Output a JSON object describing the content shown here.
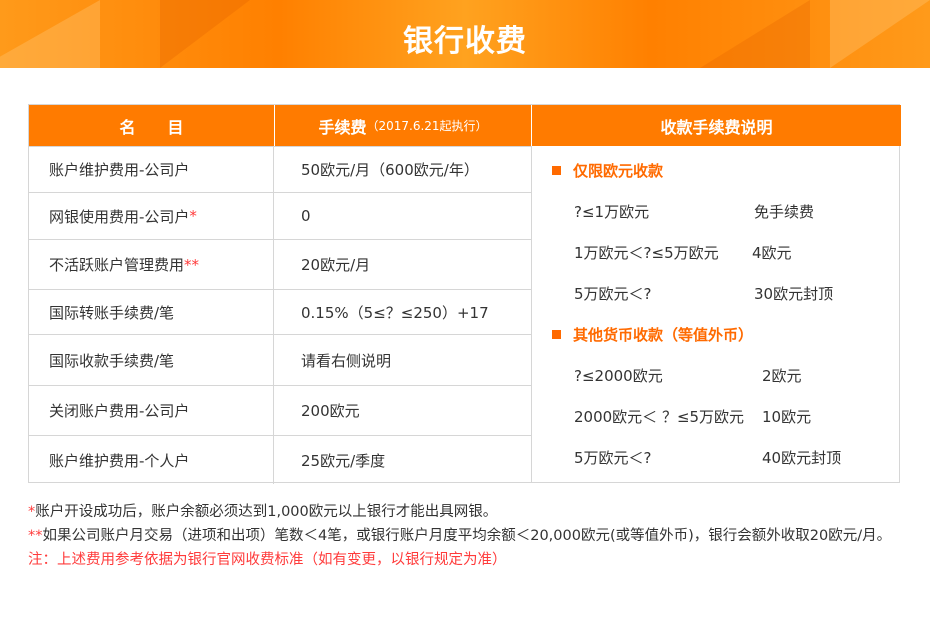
{
  "title": "银行收费",
  "colors": {
    "accent": "#ff7b00",
    "note_red": "#ff3b3b"
  },
  "table": {
    "headers": {
      "name": "名　　目",
      "fee": "手续费",
      "fee_note": "（2017.6.21起执行）",
      "explain": "收款手续费说明"
    },
    "rows": [
      {
        "name": "账户维护费用-公司户",
        "mark": "",
        "fee": "50欧元/月（600欧元/年）"
      },
      {
        "name": "网银使用费用-公司户",
        "mark": "*",
        "fee": "0"
      },
      {
        "name": "不活跃账户管理费用",
        "mark": "**",
        "fee": "20欧元/月"
      },
      {
        "name": "国际转账手续费/笔",
        "mark": "",
        "fee": "0.15%（5≤？≤250）+17"
      },
      {
        "name": "国际收款手续费/笔",
        "mark": "",
        "fee": "请看右侧说明"
      },
      {
        "name": "关闭账户费用-公司户",
        "mark": "",
        "fee": "200欧元"
      },
      {
        "name": "账户维护费用-个人户",
        "mark": "",
        "fee": "25欧元/季度"
      }
    ],
    "explain": {
      "euro": {
        "title": "仅限欧元收款",
        "lines": [
          {
            "range": "?≤1万欧元",
            "fee": "免手续费"
          },
          {
            "range": "1万欧元＜?≤5万欧元",
            "fee": "4欧元"
          },
          {
            "range": "5万欧元＜?",
            "fee": "30欧元封顶"
          }
        ]
      },
      "other": {
        "title": "其他货币收款（等值外币）",
        "lines": [
          {
            "range": "?≤2000欧元",
            "fee": "2欧元"
          },
          {
            "range": "2000欧元＜ ？≤5万欧元",
            "fee": "10欧元"
          },
          {
            "range": "5万欧元＜?",
            "fee": "40欧元封顶"
          }
        ]
      }
    }
  },
  "notes": {
    "n1_mark": "*",
    "n1": "账户开设成功后，账户余额必须达到1,000欧元以上银行才能出具网银。",
    "n2_mark": "**",
    "n2": "如果公司账户月交易（进项和出项）笔数＜4笔，或银行账户月度平均余额＜20,000欧元(或等值外币)，银行会额外收取20欧元/月。",
    "n3": "注：上述费用参考依据为银行官网收费标准（如有变更，以银行规定为准）"
  }
}
